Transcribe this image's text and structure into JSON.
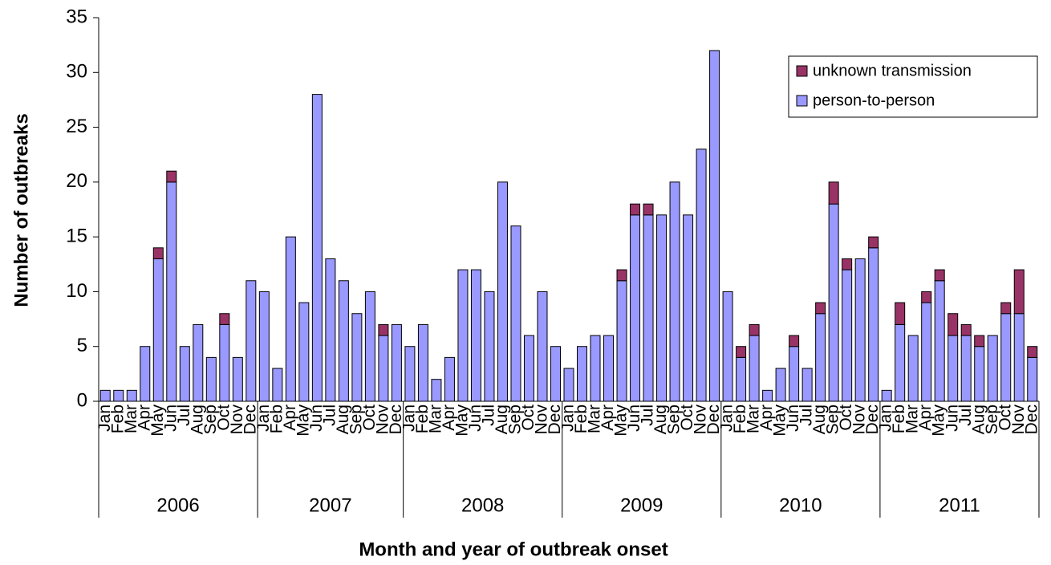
{
  "chart_data": {
    "type": "bar",
    "stacked": true,
    "x_label": "Month and year of outbreak onset",
    "y_label": "Number of outbreaks",
    "groups": [
      {
        "label": "2006",
        "categories": [
          "Jan",
          "Feb",
          "Mar",
          "Apr",
          "May",
          "Jun",
          "Jul",
          "Aug",
          "Sep",
          "Oct",
          "Nov",
          "Dec"
        ]
      },
      {
        "label": "2007",
        "categories": [
          "Jan",
          "Feb",
          "Apr",
          "May",
          "Jun",
          "Jul",
          "Aug",
          "Sep",
          "Oct",
          "Nov",
          "Dec"
        ]
      },
      {
        "label": "2008",
        "categories": [
          "Jan",
          "Feb",
          "Mar",
          "Apr",
          "May",
          "Jun",
          "Jul",
          "Aug",
          "Sep",
          "Oct",
          "Nov",
          "Dec"
        ]
      },
      {
        "label": "2009",
        "categories": [
          "Jan",
          "Feb",
          "Mar",
          "Apr",
          "May",
          "Jun",
          "Jul",
          "Aug",
          "Sep",
          "Oct",
          "Nov",
          "Dec"
        ]
      },
      {
        "label": "2010",
        "categories": [
          "Jan",
          "Feb",
          "Mar",
          "Apr",
          "May",
          "Jun",
          "Jul",
          "Aug",
          "Sep",
          "Oct",
          "Nov",
          "Dec"
        ]
      },
      {
        "label": "2011",
        "categories": [
          "Jan",
          "Feb",
          "Mar",
          "Apr",
          "May",
          "Jun",
          "Jul",
          "Aug",
          "Sep",
          "Oct",
          "Nov",
          "Dec"
        ]
      }
    ],
    "series": [
      {
        "name": "person-to-person",
        "color": "#9999ff",
        "values": [
          1,
          1,
          1,
          5,
          13,
          20,
          5,
          7,
          4,
          7,
          4,
          11,
          10,
          3,
          15,
          9,
          28,
          13,
          11,
          8,
          10,
          6,
          7,
          5,
          7,
          2,
          4,
          12,
          12,
          10,
          20,
          16,
          6,
          10,
          5,
          3,
          5,
          6,
          6,
          11,
          17,
          17,
          17,
          20,
          17,
          23,
          32,
          10,
          4,
          6,
          1,
          3,
          5,
          3,
          8,
          18,
          12,
          13,
          14,
          1,
          7,
          6,
          9,
          11,
          6,
          6,
          5,
          6,
          8,
          8,
          4
        ]
      },
      {
        "name": "unknown transmission",
        "color": "#993366",
        "values": [
          0,
          0,
          0,
          0,
          1,
          1,
          0,
          0,
          0,
          1,
          0,
          0,
          0,
          0,
          0,
          0,
          0,
          0,
          0,
          0,
          0,
          1,
          0,
          0,
          0,
          0,
          0,
          0,
          0,
          0,
          0,
          0,
          0,
          0,
          0,
          0,
          0,
          0,
          0,
          1,
          1,
          1,
          0,
          0,
          0,
          0,
          0,
          0,
          1,
          1,
          0,
          0,
          1,
          0,
          1,
          2,
          1,
          0,
          1,
          0,
          2,
          0,
          1,
          1,
          2,
          1,
          1,
          0,
          1,
          4,
          1
        ]
      }
    ],
    "ylim": [
      0,
      35
    ],
    "yticks": [
      0,
      5,
      10,
      15,
      20,
      25,
      30,
      35
    ],
    "legend_position": "top-right"
  }
}
